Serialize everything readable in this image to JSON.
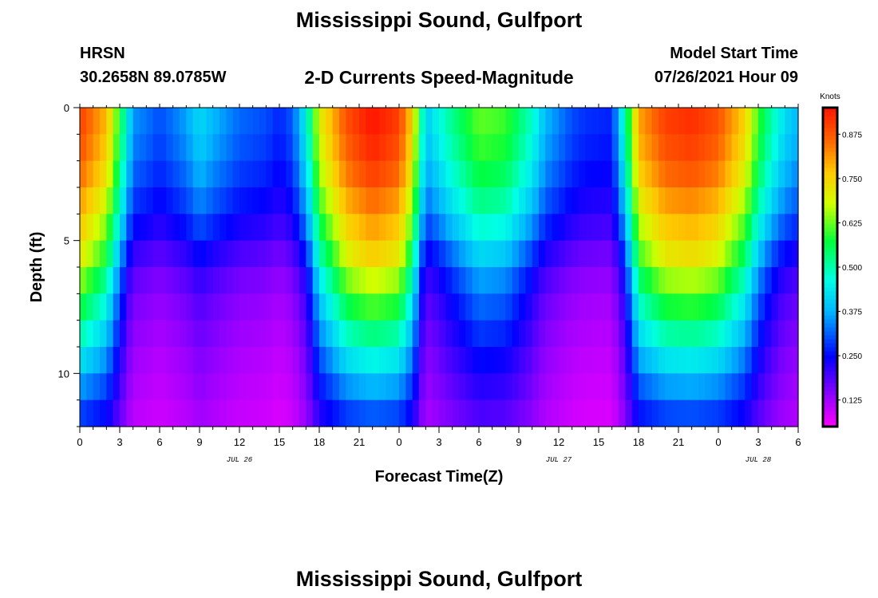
{
  "page": {
    "title_top": "Mississippi Sound, Gulfport",
    "title_bottom": "Mississippi Sound, Gulfport",
    "station_id": "HRSN",
    "coordinates": "30.2658N  89.0785W",
    "plot_title": "2-D Currents Speed-Magnitude",
    "model_label": "Model Start Time",
    "model_time": "07/26/2021 Hour 09"
  },
  "chart_data": {
    "type": "heatmap",
    "xlabel": "Forecast Time(Z)",
    "ylabel": "Depth (ft)",
    "x_range_hours": [
      0,
      54
    ],
    "y_range_ft": [
      0,
      12
    ],
    "y_ticks": [
      0,
      5,
      10
    ],
    "x_tick_labels": [
      "0",
      "3",
      "6",
      "9",
      "12",
      "15",
      "18",
      "21",
      "0",
      "3",
      "6",
      "9",
      "12",
      "15",
      "18",
      "21",
      "0",
      "3",
      "6"
    ],
    "date_labels": [
      {
        "text": "JUL 26",
        "hour": 12
      },
      {
        "text": "JUL 27",
        "hour": 36
      },
      {
        "text": "JUL 28",
        "hour": 51
      }
    ],
    "colorbar": {
      "title": "Knots",
      "min": 0.05,
      "max": 0.95,
      "ticks": [
        "0.875",
        "0.750",
        "0.625",
        "0.500",
        "0.375",
        "0.250",
        "0.125"
      ],
      "tick_values": [
        0.875,
        0.75,
        0.625,
        0.5,
        0.375,
        0.25,
        0.125
      ]
    },
    "surface_profile_knots": [
      [
        0,
        0.9
      ],
      [
        2,
        0.78
      ],
      [
        3,
        0.58
      ],
      [
        4,
        0.35
      ],
      [
        5,
        0.33
      ],
      [
        6,
        0.3
      ],
      [
        8,
        0.36
      ],
      [
        9,
        0.42
      ],
      [
        10,
        0.38
      ],
      [
        11,
        0.35
      ],
      [
        12,
        0.32
      ],
      [
        14,
        0.3
      ],
      [
        15,
        0.27
      ],
      [
        16,
        0.31
      ],
      [
        17,
        0.45
      ],
      [
        18,
        0.7
      ],
      [
        20,
        0.88
      ],
      [
        22,
        0.95
      ],
      [
        24,
        0.9
      ],
      [
        25,
        0.75
      ],
      [
        26,
        0.4
      ],
      [
        27,
        0.46
      ],
      [
        28,
        0.52
      ],
      [
        30,
        0.62
      ],
      [
        32,
        0.6
      ],
      [
        34,
        0.48
      ],
      [
        35,
        0.38
      ],
      [
        36,
        0.34
      ],
      [
        37,
        0.3
      ],
      [
        38,
        0.28
      ],
      [
        40,
        0.27
      ],
      [
        41,
        0.5
      ],
      [
        42,
        0.8
      ],
      [
        44,
        0.9
      ],
      [
        46,
        0.92
      ],
      [
        48,
        0.88
      ],
      [
        50,
        0.75
      ],
      [
        51,
        0.6
      ],
      [
        52,
        0.5
      ],
      [
        53,
        0.42
      ],
      [
        54,
        0.38
      ]
    ],
    "depth_rows_ft": [
      0.5,
      1.5,
      2.5,
      3.5,
      4.5,
      5.5,
      6.5,
      7.5,
      8.5,
      9.5,
      10.5,
      11.5
    ],
    "depth_profile_by_regime": {
      "slack": [
        1.0,
        0.96,
        0.9,
        0.82,
        0.72,
        0.6,
        0.5,
        0.44,
        0.4,
        0.36,
        0.33,
        0.3
      ],
      "strong_ebb": [
        1.0,
        0.98,
        0.95,
        0.9,
        0.85,
        0.8,
        0.72,
        0.64,
        0.56,
        0.48,
        0.4,
        0.33
      ]
    }
  }
}
